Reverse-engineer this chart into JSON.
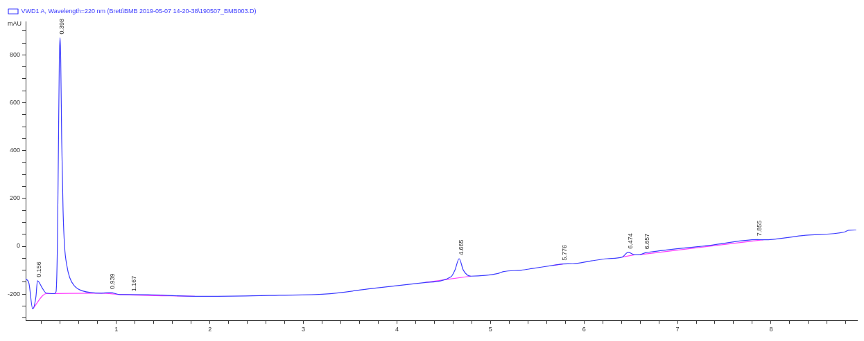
{
  "chart_data": {
    "type": "line",
    "ylabel": "mAU",
    "legend": "top left",
    "grid": false,
    "marker": "none",
    "line_style": "solid",
    "xlim": [
      0.03,
      8.92
    ],
    "xticks": [
      {
        "value": 0.2,
        "label": null
      },
      {
        "value": 0.4,
        "label": null
      },
      {
        "value": 0.6,
        "label": null
      },
      {
        "value": 0.8,
        "label": null
      },
      1,
      {
        "value": 1.2,
        "label": null
      },
      {
        "value": 1.4,
        "label": null
      },
      {
        "value": 1.6,
        "label": null
      },
      {
        "value": 1.8,
        "label": null
      },
      2,
      {
        "value": 2.2,
        "label": null
      },
      {
        "value": 2.4,
        "label": null
      },
      {
        "value": 2.6,
        "label": null
      },
      {
        "value": 2.8,
        "label": null
      },
      3,
      {
        "value": 3.2,
        "label": null
      },
      {
        "value": 3.4,
        "label": null
      },
      {
        "value": 3.6,
        "label": null
      },
      {
        "value": 3.8,
        "label": null
      },
      4,
      {
        "value": 4.2,
        "label": null
      },
      {
        "value": 4.4,
        "label": null
      },
      {
        "value": 4.6,
        "label": null
      },
      {
        "value": 4.8,
        "label": null
      },
      5,
      {
        "value": 5.2,
        "label": null
      },
      {
        "value": 5.4,
        "label": null
      },
      {
        "value": 5.6,
        "label": null
      },
      {
        "value": 5.8,
        "label": null
      },
      6,
      {
        "value": 6.2,
        "label": null
      },
      {
        "value": 6.4,
        "label": null
      },
      {
        "value": 6.6,
        "label": null
      },
      {
        "value": 6.8,
        "label": null
      },
      7,
      {
        "value": 7.2,
        "label": null
      },
      {
        "value": 7.4,
        "label": null
      },
      {
        "value": 7.6,
        "label": null
      },
      {
        "value": 7.8,
        "label": null
      },
      8,
      {
        "value": 8.2,
        "label": null
      },
      {
        "value": 8.4,
        "label": null
      },
      {
        "value": 8.6,
        "label": null
      },
      {
        "value": 8.8,
        "label": null
      }
    ],
    "ylim": [
      -310,
      940
    ],
    "yticks": [
      {
        "value": -300,
        "label": null
      },
      {
        "value": -250,
        "label": null
      },
      -200,
      {
        "value": -150,
        "label": null
      },
      {
        "value": -100,
        "label": null
      },
      {
        "value": -50,
        "label": null
      },
      0,
      {
        "value": 50,
        "label": null
      },
      {
        "value": 100,
        "label": null
      },
      {
        "value": 150,
        "label": null
      },
      200,
      {
        "value": 250,
        "label": null
      },
      {
        "value": 300,
        "label": null
      },
      {
        "value": 350,
        "label": null
      },
      400,
      {
        "value": 450,
        "label": null
      },
      {
        "value": 500,
        "label": null
      },
      {
        "value": 550,
        "label": null
      },
      600,
      {
        "value": 650,
        "label": null
      },
      {
        "value": 700,
        "label": null
      },
      {
        "value": 750,
        "label": null
      },
      800,
      {
        "value": 850,
        "label": null
      },
      {
        "value": 900,
        "label": null
      }
    ],
    "series": [
      {
        "name": "VWD1 A, Wavelength=220 nm (Brett\\BMB 2019-05-07 14-20-38\\190507_BMB003.D)",
        "color": "#3c3cff",
        "x": [
          0.03,
          0.065,
          0.105,
          0.14,
          0.156,
          0.205,
          0.25,
          0.34,
          0.355,
          0.37,
          0.38,
          0.39,
          0.398,
          0.405,
          0.415,
          0.43,
          0.446,
          0.47,
          0.5,
          0.55,
          0.64,
          0.84,
          0.939,
          1.04,
          1.09,
          1.34,
          1.84,
          2.08,
          2.74,
          3.23,
          3.73,
          4.29,
          4.58,
          4.62,
          4.665,
          4.71,
          4.79,
          5.08,
          5.14,
          5.33,
          5.45,
          5.67,
          5.776,
          5.88,
          6.08,
          6.25,
          6.41,
          6.474,
          6.54,
          6.6,
          6.657,
          6.75,
          7.37,
          7.855,
          7.92,
          8.37,
          8.79,
          8.83,
          8.91
        ],
        "values": [
          -136,
          -155,
          -262,
          -210,
          -144,
          -173,
          -196,
          -198,
          -190,
          20,
          400,
          780,
          872,
          780,
          450,
          150,
          0,
          -80,
          -130,
          -165,
          -187,
          -196,
          -194,
          -202,
          -202,
          -203,
          -209,
          -209,
          -205,
          -200,
          -177,
          -152,
          -127,
          -100,
          -52,
          -100,
          -125,
          -114,
          -106,
          -100,
          -93,
          -80,
          -74,
          -73,
          -61,
          -52,
          -45,
          -25,
          -36,
          -35,
          -27,
          -22,
          5,
          28,
          27,
          46,
          60,
          67,
          68
        ]
      },
      {
        "color": "#ff40ff",
        "x": [
          0.105,
          0.25,
          0.84,
          1.04,
          1.84,
          3,
          4.29,
          4.79,
          5,
          5.67,
          5.776,
          6,
          6.41,
          6.54,
          6.57,
          6.6,
          7.92
        ],
        "values": [
          -262,
          -198,
          -196,
          -202,
          -209,
          null,
          -152,
          -125,
          null,
          -80,
          -74,
          null,
          -45,
          -36,
          null,
          -35,
          27
        ]
      }
    ],
    "annotations": [
      {
        "text": "0.156",
        "x": 0.156,
        "y": -144
      },
      {
        "text": "0.398",
        "x": 0.398,
        "y": 872
      },
      {
        "text": "0.939",
        "x": 0.939,
        "y": -194
      },
      {
        "text": "1.167",
        "x": 1.167,
        "y": -203
      },
      {
        "text": "4.665",
        "x": 4.665,
        "y": -52
      },
      {
        "text": "5.776",
        "x": 5.776,
        "y": -74
      },
      {
        "text": "6.474",
        "x": 6.474,
        "y": -25
      },
      {
        "text": "6.657",
        "x": 6.657,
        "y": -27
      },
      {
        "text": "7.855",
        "x": 7.855,
        "y": 28
      }
    ]
  }
}
